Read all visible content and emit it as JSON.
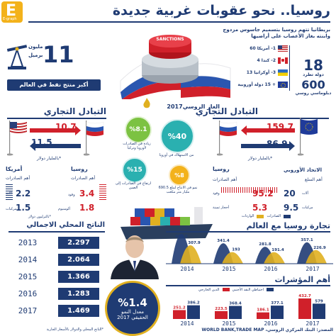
{
  "header": {
    "logo": "E",
    "logo_sub": "E-graph",
    "title": "روسيا.. نحو عقوبات غربية جديدة",
    "sanctions_label": "SANCTIONS"
  },
  "oil": {
    "big": "11",
    "unit1": "مليون",
    "unit2": "برميل",
    "caption": "أكبر منتج نفط في العالم"
  },
  "diplomats": {
    "headline": "بريطانيا تتهم روسيا بتسميم جاسوس مزدوج وابنته بغاز الأعصاب على أراضيها",
    "items": [
      "1- أمريكا 60",
      "2- كندا 4",
      "3- أوكرانيا 13",
      "+ 15 دولة أوروبية"
    ],
    "count_states": "18",
    "states_label": "دولة تطرد",
    "count_dipl": "600",
    "dipl_label": "دبلوماسي روسي"
  },
  "gas": {
    "title": "الغاز الروسي2017",
    "c1_val": "%40",
    "c1_lbl": "من الاستهلاك في أوروبا",
    "c2_val": "%8.1",
    "c2_lbl": "زيادة في الصادرات لأوروبا وتركيا",
    "c3_val": "%15",
    "c3_lbl": "ارتفاع في الصادرات إلى الصين",
    "c4_val": "%8",
    "c4_lbl": "نمو في الانتاج ليبلغ 690.5 مليار متر مكعب"
  },
  "trade_us": {
    "title": "التبادل التجاري",
    "us_val": "10.7",
    "ru_val": "11.5",
    "unit": "*بالمليار دولار",
    "left_country": "أمريكا",
    "right_country": "روسيا",
    "exp_label": "أهم الصادرات",
    "a1_val": "2.2",
    "a1_lbl": "آلات",
    "a2_val": "1.5",
    "a2_lbl": "مركبات",
    "r1_val": "3.4",
    "r1_lbl": "وقود",
    "r2_val": "1.8",
    "r2_lbl": "ألومنيوم"
  },
  "trade_eu": {
    "title": "التبادل التجاري",
    "ru_val": "159.7",
    "eu_val": "86.9",
    "unit": "*بالمليار دولار",
    "left_country": "روسيا",
    "right_country": "الاتحاد الأوروبي",
    "exp_label": "أهم الصادرات",
    "exp2_label": "أهم السلع",
    "r1_val": "95.2",
    "r1_lbl": "وقود",
    "r2_val": "5.3",
    "r2_lbl": "أحجار ثمينة",
    "e1_val": "20",
    "e1_lbl": "آلات",
    "e2_val": "9.5",
    "e2_lbl": "مركبات"
  },
  "gdp": {
    "title": "الناتج المحلي الاجمالي",
    "sub": "*بالترليون دولار",
    "rows": [
      {
        "year": "2013",
        "val": "2.297"
      },
      {
        "year": "2014",
        "val": "2.064"
      },
      {
        "year": "2015",
        "val": "1.366"
      },
      {
        "year": "2016",
        "val": "1.283"
      },
      {
        "year": "2017",
        "val": "1.469"
      }
    ],
    "note": "*الناتج المحلي والدولار بالأسعار الجارية"
  },
  "growth": {
    "val": "%1.4",
    "lbl1": "معدل النمو",
    "lbl2": "الحقيقي 2017"
  },
  "world_trade": {
    "title": "تجارة روسيا مع العالم",
    "legend_exp": "الصادرات",
    "legend_imp": "الواردات",
    "years": [
      "2014",
      "2015",
      "2016",
      "2017"
    ],
    "exports": [
      496.8,
      341.4,
      281.8,
      357.1
    ],
    "imports": [
      307.9,
      193,
      191.4,
      226.9
    ],
    "labels": [
      "496.8",
      "307.9",
      "341.4",
      "193",
      "281.8",
      "191.4",
      "357.1",
      "226.9"
    ]
  },
  "indicators": {
    "title": "أهم المؤشرات",
    "legend_debt": "الدين الخارجي",
    "legend_res": "احتياطي النقد الأجنبي",
    "years": [
      "2014",
      "2015",
      "2016",
      "2017"
    ],
    "debt": [
      251.2,
      223.5,
      186.1,
      579
    ],
    "reserves": [
      386.2,
      368.4,
      377.1,
      432.7
    ],
    "labels": [
      "386.2",
      "251.2",
      "368.4",
      "223.5",
      "377.1",
      "186.1",
      "579",
      "432.7"
    ]
  },
  "source": "المصدر: البنك المركزي الروسي، WORLD BANK,TRADE MAP",
  "colors": {
    "navy": "#1f3b73",
    "red": "#d0202a",
    "teal": "#2ab0b0",
    "gold": "#e0b020",
    "green": "#7cc242"
  }
}
